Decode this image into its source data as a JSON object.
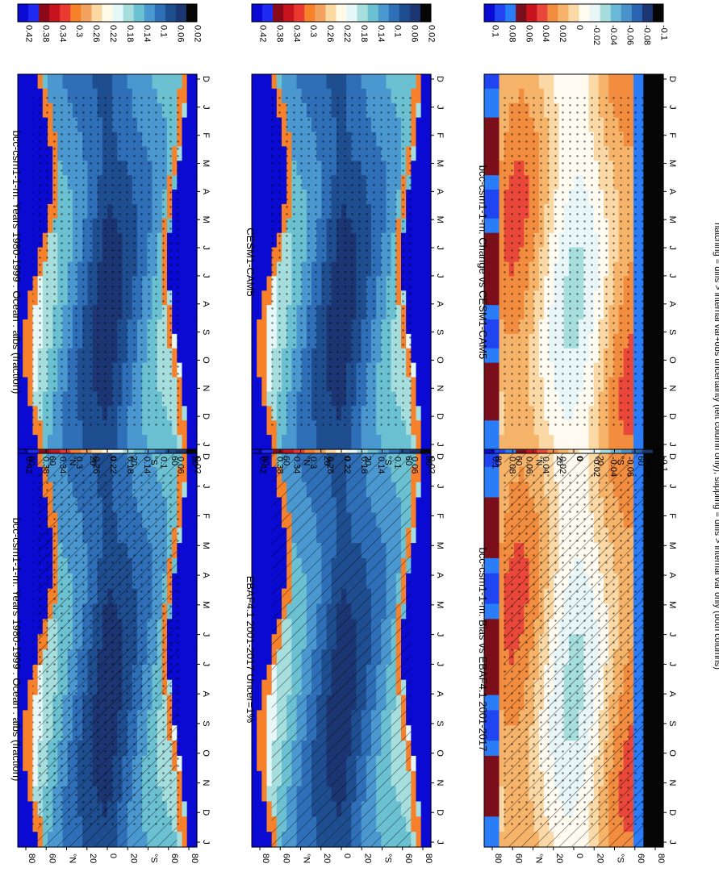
{
  "figure": {
    "footnote": "hatching = diffs > internal var+obs uncertainty (left column only); stippling = diffs > internal var only (both columns)"
  },
  "palettes": {
    "absolute": [
      "#0a0ad2",
      "#1f2bf0",
      "#8a0a1a",
      "#c8141e",
      "#ea3a30",
      "#f7812a",
      "#f3a25f",
      "#fbd9a2",
      "#fffbe6",
      "#e6f7f7",
      "#a6dede",
      "#6bc1d2",
      "#4a98cf",
      "#2f6fb8",
      "#1f4e90",
      "#1c3573",
      "#060606"
    ],
    "difference": [
      "#0a0ad2",
      "#2045f0",
      "#2a7cf7",
      "#7a0e1b",
      "#c8141e",
      "#e8473a",
      "#f28c3e",
      "#f6b36a",
      "#fbd9a6",
      "#fffbf0",
      "#e8f6f8",
      "#a6dede",
      "#6bb8d8",
      "#4a92cc",
      "#2d64b0",
      "#1c3573",
      "#060606"
    ]
  },
  "chart_data": [
    {
      "id": "model",
      "type": "heatmap",
      "title": "bcc-csm1-1-m: Years 1980-1999 : Ocean : albs (fraction)",
      "xlabel": "",
      "ylabel": "",
      "x_tick_labels": [
        "D",
        "J",
        "F",
        "M",
        "A",
        "M",
        "J",
        "J",
        "A",
        "S",
        "O",
        "N",
        "D",
        "J"
      ],
      "y_tick_labels": [
        "80",
        "60",
        "°N",
        "20",
        "0",
        "20",
        "°S",
        "60",
        "80"
      ],
      "colorbar_labels": [
        "0.42",
        "0.38",
        "0.34",
        "0.3",
        "0.26",
        "0.22",
        "0.18",
        "0.14",
        "0.1",
        "0.06",
        "0.02"
      ],
      "palette": "absolute",
      "hatching": true,
      "stippling": true
    },
    {
      "id": "obs",
      "type": "heatmap",
      "title": "EBAF4.1 2001-2017 Uncer=1%",
      "xlabel": "",
      "ylabel": "",
      "x_tick_labels": [
        "D",
        "J",
        "F",
        "M",
        "A",
        "M",
        "J",
        "J",
        "A",
        "S",
        "O",
        "N",
        "D",
        "J"
      ],
      "y_tick_labels": [
        "80",
        "60",
        "°N",
        "20",
        "0",
        "20",
        "°S",
        "60",
        "80"
      ],
      "colorbar_labels": [
        "0.42",
        "0.38",
        "0.34",
        "0.3",
        "0.26",
        "0.22",
        "0.18",
        "0.14",
        "0.1",
        "0.06",
        "0.02"
      ],
      "palette": "absolute",
      "hatching": true,
      "stippling": false
    },
    {
      "id": "bias",
      "type": "heatmap",
      "title": "bcc-csm1-1-m: Bias vs EBAF4.1 2001-2017",
      "xlabel": "",
      "ylabel": "",
      "x_tick_labels": [
        "D",
        "J",
        "F",
        "M",
        "A",
        "M",
        "J",
        "J",
        "A",
        "S",
        "O",
        "N",
        "D",
        "J"
      ],
      "y_tick_labels": [
        "80",
        "60",
        "°N",
        "20",
        "0",
        "20",
        "°S",
        "60",
        "80"
      ],
      "colorbar_labels": [
        "0.1",
        "0.08",
        "0.06",
        "0.04",
        "0.02",
        "0",
        "-0.02",
        "-0.04",
        "-0.06",
        "-0.08",
        "-0.1"
      ],
      "palette": "difference",
      "hatching": true,
      "stippling": true
    },
    {
      "id": "model_right",
      "type": "heatmap",
      "title": "bcc-csm1-1-m: Years 1980-1999 : Ocean : albs (fraction)",
      "xlabel": "",
      "ylabel": "",
      "x_tick_labels": [
        "D",
        "J",
        "F",
        "M",
        "A",
        "M",
        "J",
        "J",
        "A",
        "S",
        "O",
        "N",
        "D",
        "J"
      ],
      "y_tick_labels": [
        "80",
        "60",
        "°N",
        "20",
        "0",
        "20",
        "°S",
        "60",
        "80"
      ],
      "colorbar_labels": [
        "0.42",
        "0.38",
        "0.34",
        "0.3",
        "0.26",
        "0.22",
        "0.18",
        "0.14",
        "0.1",
        "0.06",
        "0.02"
      ],
      "palette": "absolute",
      "hatching": false,
      "stippling": true
    },
    {
      "id": "reference",
      "type": "heatmap",
      "title": "CESM1-CAM5",
      "xlabel": "",
      "ylabel": "",
      "x_tick_labels": [
        "D",
        "J",
        "F",
        "M",
        "A",
        "M",
        "J",
        "J",
        "A",
        "S",
        "O",
        "N",
        "D",
        "J"
      ],
      "y_tick_labels": [
        "80",
        "60",
        "°N",
        "20",
        "0",
        "20",
        "°S",
        "60",
        "80"
      ],
      "colorbar_labels": [
        "0.42",
        "0.38",
        "0.34",
        "0.3",
        "0.26",
        "0.22",
        "0.18",
        "0.14",
        "0.1",
        "0.06",
        "0.02"
      ],
      "palette": "absolute",
      "hatching": false,
      "stippling": true
    },
    {
      "id": "change",
      "type": "heatmap",
      "title": "bcc-csm1-1-m: Change vs CESM1-CAM5",
      "xlabel": "",
      "ylabel": "",
      "x_tick_labels": [
        "D",
        "J",
        "F",
        "M",
        "A",
        "M",
        "J",
        "J",
        "A",
        "S",
        "O",
        "N",
        "D",
        "J"
      ],
      "y_tick_labels": [
        "80",
        "60",
        "°N",
        "20",
        "0",
        "20",
        "°S",
        "60",
        "80"
      ],
      "colorbar_labels": [
        "0.1",
        "0.08",
        "0.06",
        "0.04",
        "0.02",
        "0",
        "-0.02",
        "-0.04",
        "-0.06",
        "-0.08",
        "-0.1"
      ],
      "palette": "difference",
      "hatching": false,
      "stippling": true
    }
  ]
}
